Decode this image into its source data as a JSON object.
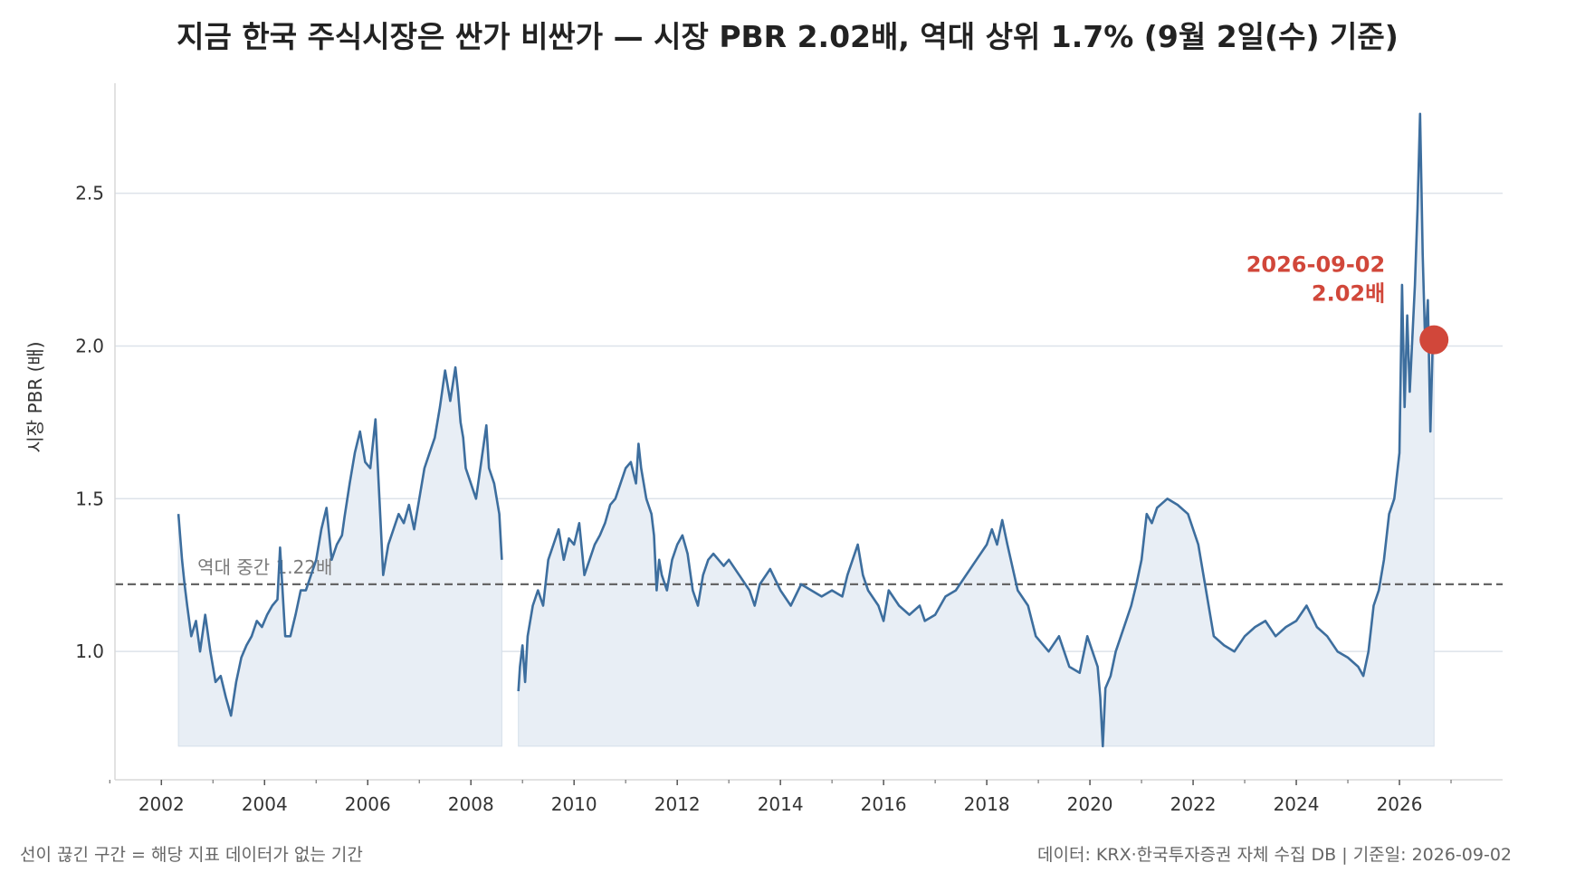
{
  "chart_data": {
    "type": "line",
    "title": "지금 한국 주식시장은 싼가 비싼가 — 시장 PBR 2.02배, 역대 상위 1.7% (9월 2일(수) 기준)",
    "xlabel": "",
    "ylabel": "시장 PBR (배)",
    "xlim": [
      2001.1,
      2028.0
    ],
    "ylim": [
      0.58,
      2.86
    ],
    "y_ticks": [
      1.0,
      1.5,
      2.0,
      2.5
    ],
    "y_tick_labels": [
      "1.0",
      "1.5",
      "2.0",
      "2.5"
    ],
    "x_ticks": [
      2002,
      2004,
      2006,
      2008,
      2010,
      2012,
      2014,
      2016,
      2018,
      2020,
      2022,
      2024,
      2026
    ],
    "x_tick_labels": [
      "2002",
      "2004",
      "2006",
      "2008",
      "2010",
      "2012",
      "2014",
      "2016",
      "2018",
      "2020",
      "2022",
      "2024",
      "2026"
    ],
    "grid": "horizontal",
    "colors": {
      "line": "#3d6e9e",
      "fill": "#e8eef5",
      "reference": "#666666",
      "highlight": "#d1473a",
      "grid": "#dde3ea"
    },
    "reference_line": {
      "value": 1.22,
      "label": "역대 중간 1.22배"
    },
    "annotation": {
      "date": "2026-09-02",
      "value": 2.02,
      "date_label": "2026-09-02",
      "value_label": "2.02배"
    },
    "gap_note": "선이 끊긴 구간 = 해당 지표 데이터가 없는 기간",
    "source_note": "데이터: KRX·한국투자증권 자체 수집 DB  |  기준일: 2026-09-02",
    "series": [
      {
        "segments": [
          {
            "x": [
              2002.33,
              2002.4,
              2002.45,
              2002.5,
              2002.58,
              2002.67,
              2002.75,
              2002.85,
              2002.95,
              2003.05,
              2003.15,
              2003.25,
              2003.35,
              2003.45,
              2003.55,
              2003.65,
              2003.75,
              2003.85,
              2003.95,
              2004.05,
              2004.15,
              2004.25,
              2004.3,
              2004.4,
              2004.5,
              2004.6,
              2004.7,
              2004.8,
              2004.9,
              2005.0,
              2005.1,
              2005.2,
              2005.3,
              2005.4,
              2005.5,
              2005.55,
              2005.65,
              2005.75,
              2005.85,
              2005.95,
              2006.05,
              2006.15,
              2006.25,
              2006.3,
              2006.4,
              2006.5,
              2006.6,
              2006.7,
              2006.8,
              2006.9,
              2007.0,
              2007.1,
              2007.2,
              2007.3,
              2007.4,
              2007.5,
              2007.6,
              2007.7,
              2007.75,
              2007.8,
              2007.85,
              2007.9,
              2008.0,
              2008.1,
              2008.2,
              2008.3,
              2008.35,
              2008.45,
              2008.55,
              2008.6
            ],
            "y": [
              1.45,
              1.3,
              1.22,
              1.15,
              1.05,
              1.1,
              1.0,
              1.12,
              1.0,
              0.9,
              0.92,
              0.85,
              0.79,
              0.9,
              0.98,
              1.02,
              1.05,
              1.1,
              1.08,
              1.12,
              1.15,
              1.17,
              1.34,
              1.05,
              1.05,
              1.12,
              1.2,
              1.2,
              1.25,
              1.3,
              1.4,
              1.47,
              1.3,
              1.35,
              1.38,
              1.44,
              1.55,
              1.65,
              1.72,
              1.62,
              1.6,
              1.76,
              1.42,
              1.25,
              1.35,
              1.4,
              1.45,
              1.42,
              1.48,
              1.4,
              1.5,
              1.6,
              1.65,
              1.7,
              1.8,
              1.92,
              1.82,
              1.93,
              1.85,
              1.75,
              1.7,
              1.6,
              1.55,
              1.5,
              1.62,
              1.74,
              1.6,
              1.55,
              1.45,
              1.3
            ]
          },
          {
            "x": [
              2008.92,
              2008.95,
              2009.0,
              2009.05,
              2009.1,
              2009.2,
              2009.3,
              2009.4,
              2009.5,
              2009.6,
              2009.7,
              2009.8,
              2009.9,
              2010.0,
              2010.1,
              2010.2,
              2010.3,
              2010.4,
              2010.5,
              2010.6,
              2010.7,
              2010.8,
              2010.9,
              2011.0,
              2011.1,
              2011.2,
              2011.25,
              2011.3,
              2011.4,
              2011.5,
              2011.55,
              2011.6,
              2011.65,
              2011.7,
              2011.8,
              2011.9,
              2012.0,
              2012.1,
              2012.2,
              2012.3,
              2012.4,
              2012.5,
              2012.6,
              2012.7,
              2012.8,
              2012.9,
              2013.0,
              2013.2,
              2013.4,
              2013.5,
              2013.6,
              2013.8,
              2014.0,
              2014.2,
              2014.4,
              2014.6,
              2014.8,
              2015.0,
              2015.2,
              2015.3,
              2015.5,
              2015.6,
              2015.7,
              2015.9,
              2016.0,
              2016.1,
              2016.3,
              2016.5,
              2016.7,
              2016.8,
              2017.0,
              2017.2,
              2017.4,
              2017.6,
              2017.8,
              2018.0,
              2018.1,
              2018.2,
              2018.3,
              2018.4,
              2018.6,
              2018.8,
              2018.95,
              2019.2,
              2019.4,
              2019.6,
              2019.8,
              2019.95,
              2020.05,
              2020.15,
              2020.2,
              2020.25,
              2020.3,
              2020.4,
              2020.5,
              2020.6,
              2020.7,
              2020.8,
              2020.9,
              2021.0,
              2021.1,
              2021.2,
              2021.3,
              2021.5,
              2021.7,
              2021.9,
              2022.1,
              2022.3,
              2022.4,
              2022.6,
              2022.8,
              2023.0,
              2023.2,
              2023.4,
              2023.6,
              2023.8,
              2024.0,
              2024.2,
              2024.4,
              2024.6,
              2024.8,
              2025.0,
              2025.2,
              2025.3,
              2025.4,
              2025.5,
              2025.6,
              2025.7,
              2025.8,
              2025.9,
              2026.0,
              2026.05,
              2026.1,
              2026.15,
              2026.2,
              2026.3,
              2026.35,
              2026.4,
              2026.45,
              2026.5,
              2026.55,
              2026.6,
              2026.65,
              2026.67
            ],
            "y": [
              0.87,
              0.95,
              1.02,
              0.9,
              1.05,
              1.15,
              1.2,
              1.15,
              1.3,
              1.35,
              1.4,
              1.3,
              1.37,
              1.35,
              1.42,
              1.25,
              1.3,
              1.35,
              1.38,
              1.42,
              1.48,
              1.5,
              1.55,
              1.6,
              1.62,
              1.55,
              1.68,
              1.6,
              1.5,
              1.45,
              1.38,
              1.2,
              1.3,
              1.25,
              1.2,
              1.3,
              1.35,
              1.38,
              1.32,
              1.2,
              1.15,
              1.25,
              1.3,
              1.32,
              1.3,
              1.28,
              1.3,
              1.25,
              1.2,
              1.15,
              1.22,
              1.27,
              1.2,
              1.15,
              1.22,
              1.2,
              1.18,
              1.2,
              1.18,
              1.25,
              1.35,
              1.25,
              1.2,
              1.15,
              1.1,
              1.2,
              1.15,
              1.12,
              1.15,
              1.1,
              1.12,
              1.18,
              1.2,
              1.25,
              1.3,
              1.35,
              1.4,
              1.35,
              1.43,
              1.35,
              1.2,
              1.15,
              1.05,
              1.0,
              1.05,
              0.95,
              0.93,
              1.05,
              1.0,
              0.95,
              0.85,
              0.69,
              0.88,
              0.92,
              1.0,
              1.05,
              1.1,
              1.15,
              1.22,
              1.3,
              1.45,
              1.42,
              1.47,
              1.5,
              1.48,
              1.45,
              1.35,
              1.15,
              1.05,
              1.02,
              1.0,
              1.05,
              1.08,
              1.1,
              1.05,
              1.08,
              1.1,
              1.15,
              1.08,
              1.05,
              1.0,
              0.98,
              0.95,
              0.92,
              1.0,
              1.15,
              1.2,
              1.3,
              1.45,
              1.5,
              1.65,
              2.2,
              1.8,
              2.1,
              1.85,
              2.2,
              2.45,
              2.76,
              2.3,
              2.0,
              2.15,
              1.72,
              2.05,
              2.02
            ]
          }
        ]
      }
    ]
  }
}
